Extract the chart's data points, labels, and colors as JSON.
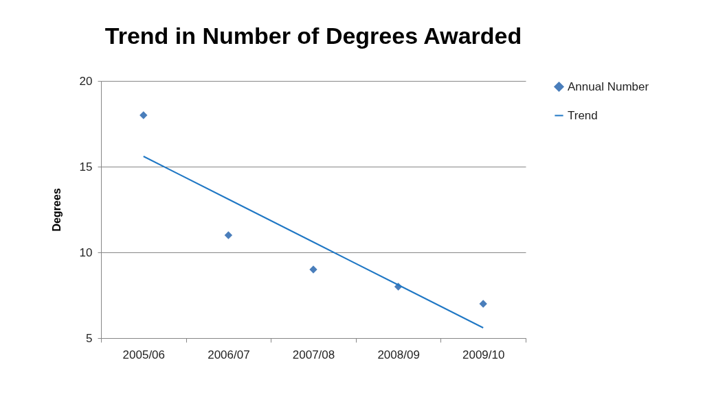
{
  "chart_data": {
    "type": "scatter",
    "title": "Trend in Number of Degrees Awarded",
    "ylabel": "Degrees",
    "categories": [
      "2005/06",
      "2006/07",
      "2007/08",
      "2008/09",
      "2009/10"
    ],
    "series": [
      {
        "name": "Annual Number",
        "marker": "diamond",
        "color": "#4a7ebb",
        "values": [
          18,
          11,
          9,
          8,
          7
        ]
      },
      {
        "name": "Trend",
        "type": "line",
        "color": "#1f77c4",
        "x": [
          "2005/06",
          "2006/07",
          "2007/08",
          "2008/09",
          "2009/10"
        ],
        "values": [
          15.6,
          13.1,
          10.6,
          8.1,
          5.6
        ]
      }
    ],
    "ylim": [
      5,
      20
    ],
    "yticks": [
      5,
      10,
      15,
      20
    ],
    "grid": "y",
    "legend": "right"
  }
}
